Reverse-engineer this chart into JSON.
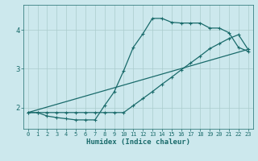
{
  "xlabel": "Humidex (Indice chaleur)",
  "bg_color": "#cce8ed",
  "grid_color": "#aacccc",
  "line_color": "#1a6b6b",
  "xlim": [
    -0.5,
    23.5
  ],
  "ylim": [
    1.45,
    4.65
  ],
  "yticks": [
    2,
    3,
    4
  ],
  "xticks": [
    0,
    1,
    2,
    3,
    4,
    5,
    6,
    7,
    8,
    9,
    10,
    11,
    12,
    13,
    14,
    15,
    16,
    17,
    18,
    19,
    20,
    21,
    22,
    23
  ],
  "curve1_x": [
    0,
    1,
    2,
    3,
    4,
    5,
    6,
    7,
    8,
    9,
    10,
    11,
    12,
    13,
    14,
    15,
    16,
    17,
    18,
    19,
    20,
    21,
    22,
    23
  ],
  "curve1_y": [
    1.87,
    1.87,
    1.78,
    1.74,
    1.71,
    1.68,
    1.68,
    1.68,
    2.05,
    2.4,
    2.95,
    3.55,
    3.9,
    4.3,
    4.3,
    4.2,
    4.18,
    4.18,
    4.18,
    4.05,
    4.05,
    3.93,
    3.55,
    3.45
  ],
  "curve2_x": [
    0,
    1,
    2,
    3,
    4,
    5,
    6,
    7,
    8,
    9,
    10,
    11,
    12,
    13,
    14,
    15,
    16,
    17,
    18,
    19,
    20,
    21,
    22,
    23
  ],
  "curve2_y": [
    1.87,
    1.87,
    1.87,
    1.87,
    1.87,
    1.87,
    1.87,
    1.87,
    1.87,
    1.87,
    1.87,
    2.05,
    2.23,
    2.41,
    2.6,
    2.78,
    2.97,
    3.15,
    3.33,
    3.52,
    3.65,
    3.78,
    3.88,
    3.5
  ],
  "curve3_x": [
    0,
    23
  ],
  "curve3_y": [
    1.87,
    3.5
  ]
}
